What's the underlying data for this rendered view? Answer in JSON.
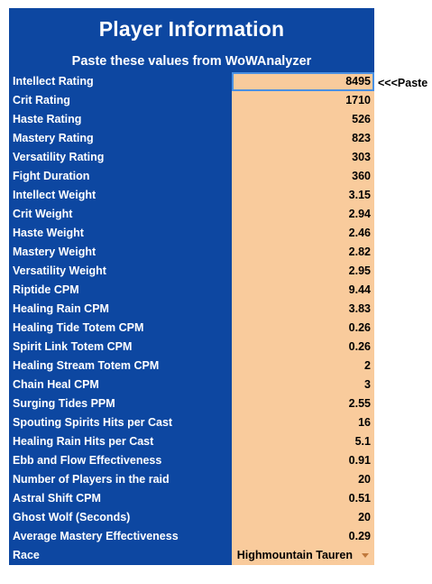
{
  "header": {
    "title": "Player Information",
    "subtitle": "Paste these values from WoWAnalyzer"
  },
  "paste_note": "<<<Paste",
  "rows": [
    {
      "label": "Intellect Rating",
      "value": "8495"
    },
    {
      "label": "Crit Rating",
      "value": "1710"
    },
    {
      "label": "Haste Rating",
      "value": "526"
    },
    {
      "label": "Mastery Rating",
      "value": "823"
    },
    {
      "label": "Versatility Rating",
      "value": "303"
    },
    {
      "label": "Fight Duration",
      "value": "360"
    },
    {
      "label": "Intellect Weight",
      "value": "3.15"
    },
    {
      "label": "Crit Weight",
      "value": "2.94"
    },
    {
      "label": "Haste Weight",
      "value": "2.46"
    },
    {
      "label": "Mastery Weight",
      "value": "2.82"
    },
    {
      "label": "Versatility Weight",
      "value": "2.95"
    },
    {
      "label": "Riptide CPM",
      "value": "9.44"
    },
    {
      "label": "Healing Rain CPM",
      "value": "3.83"
    },
    {
      "label": "Healing Tide Totem CPM",
      "value": "0.26"
    },
    {
      "label": "Spirit Link Totem CPM",
      "value": "0.26"
    },
    {
      "label": "Healing Stream Totem CPM",
      "value": "2"
    },
    {
      "label": "Chain Heal CPM",
      "value": "3"
    },
    {
      "label": "Surging Tides PPM",
      "value": "2.55"
    },
    {
      "label": "Spouting Spirits Hits per Cast",
      "value": "16"
    },
    {
      "label": "Healing Rain Hits per Cast",
      "value": "5.1"
    },
    {
      "label": "Ebb and Flow Effectiveness",
      "value": "0.91"
    },
    {
      "label": "Number of Players in the raid",
      "value": "20"
    },
    {
      "label": "Astral Shift CPM",
      "value": "0.51"
    },
    {
      "label": "Ghost Wolf (Seconds)",
      "value": "20"
    },
    {
      "label": "Average Mastery Effectiveness",
      "value": "0.29"
    },
    {
      "label": "Race",
      "value": "Highmountain Tauren"
    }
  ],
  "icons": {
    "race_dropdown": "chevron-down-icon"
  },
  "colors": {
    "header_bg": "#0d47a1",
    "value_bg": "#f9cb9c",
    "selection_border": "#4a90e2"
  }
}
